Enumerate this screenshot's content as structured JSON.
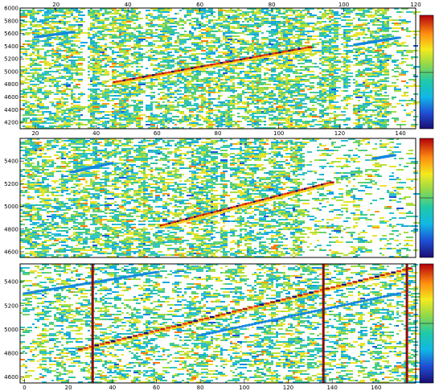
{
  "chart_data": [
    {
      "type": "heatmap",
      "title": "",
      "xlabel": "",
      "ylabel": "",
      "xlim_bottom": [
        15,
        145
      ],
      "x_ticks_bottom": [
        "20",
        "40",
        "60",
        "80",
        "100",
        "120",
        "140"
      ],
      "xlim_top": [
        10,
        120
      ],
      "x_ticks_top": [
        "20",
        "40",
        "60",
        "80",
        "100",
        "120"
      ],
      "ylim": [
        4100,
        6000
      ],
      "y_ticks": [
        "4200",
        "4400",
        "4600",
        "4800",
        "5000",
        "5200",
        "5400",
        "5600",
        "5800",
        "6000"
      ],
      "tracks": [
        {
          "x": [
            46,
            110
          ],
          "y": [
            4830,
            5380
          ]
        },
        {
          "x": [
            20,
            32
          ],
          "y": [
            5540,
            5620
          ]
        },
        {
          "x": [
            125,
            139
          ],
          "y": [
            5420,
            5530
          ]
        }
      ],
      "empty_columns": [
        36,
        55,
        119,
        123
      ],
      "colorbar": {
        "zmin": 0,
        "zmax": 1
      }
    },
    {
      "type": "heatmap",
      "title": "",
      "xlabel": "",
      "ylabel": "",
      "xlim": [
        0,
        140
      ],
      "x_ticks": [],
      "ylim": [
        4550,
        5600
      ],
      "y_ticks": [
        "4600",
        "4800",
        "5000",
        "5200",
        "5400"
      ],
      "tracks": [
        {
          "x": [
            50,
            110
          ],
          "y": [
            4830,
            5210
          ]
        },
        {
          "x": [
            18,
            32
          ],
          "y": [
            5300,
            5380
          ]
        },
        {
          "x": [
            125,
            132
          ],
          "y": [
            5420,
            5450
          ]
        }
      ],
      "empty_columns": [
        70,
        73
      ],
      "colorbar": {
        "zmin": 0,
        "zmax": 1
      }
    },
    {
      "type": "heatmap",
      "title": "",
      "xlabel": "",
      "ylabel": "",
      "xlim": [
        -2,
        178
      ],
      "x_ticks": [
        "0",
        "20",
        "40",
        "60",
        "80",
        "100",
        "120",
        "140",
        "160"
      ],
      "ylim": [
        4550,
        5550
      ],
      "y_ticks": [
        "4600",
        "4800",
        "5000",
        "5200",
        "5400"
      ],
      "tracks": [
        {
          "x": [
            25,
            175
          ],
          "y": [
            4830,
            5510
          ]
        },
        {
          "x": [
            0,
            60
          ],
          "y": [
            5300,
            5480
          ]
        },
        {
          "x": [
            80,
            170
          ],
          "y": [
            4950,
            5300
          ]
        }
      ],
      "hot_columns": [
        31,
        136,
        174
      ],
      "colorbar": {
        "zmin": 0,
        "zmax": 1
      }
    }
  ]
}
